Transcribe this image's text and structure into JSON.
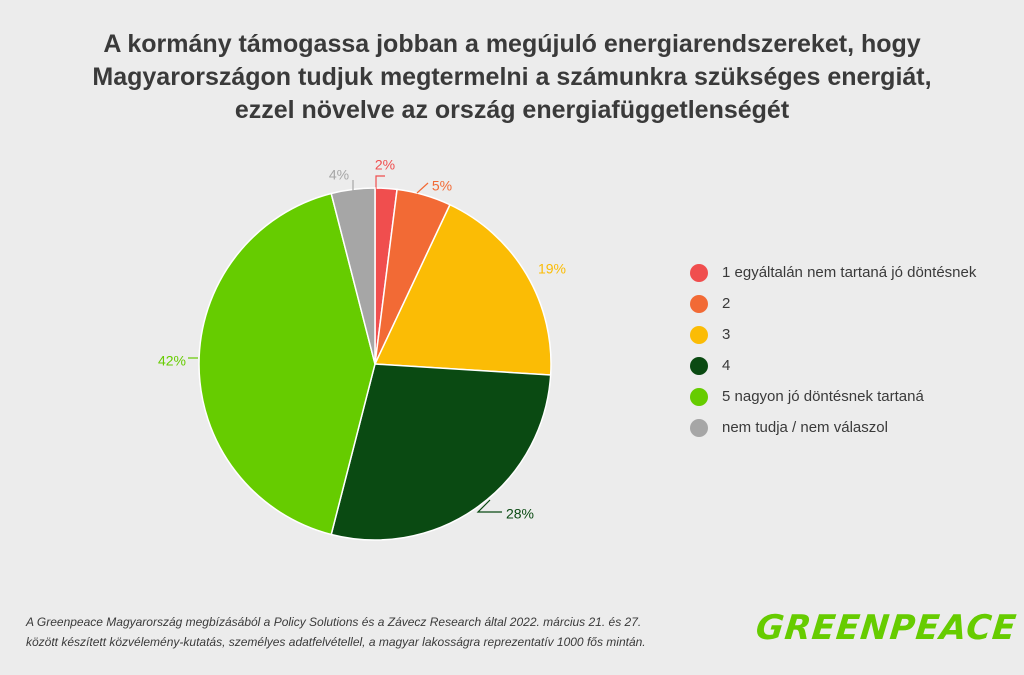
{
  "title": {
    "line1": "A kormány támogassa jobban a megújuló energiarendszereket, hogy",
    "line2": "Magyarországon tudjuk megtermelni a számunkra szükséges energiát,",
    "line3": "ezzel növelve az ország energiafüggetlenségét"
  },
  "chart_data": {
    "type": "pie",
    "title": "A kormány támogassa jobban a megújuló energiarendszereket, hogy Magyarországon tudjuk megtermelni a számunkra szükséges energiát, ezzel növelve az ország energiafüggetlenségét",
    "slices": [
      {
        "label": "1 egyáltalán nem tartaná jó döntésnek",
        "value": 2,
        "display": "2%",
        "color": "#f04e4e"
      },
      {
        "label": "2",
        "value": 5,
        "display": "5%",
        "color": "#f26a35"
      },
      {
        "label": "3",
        "value": 19,
        "display": "19%",
        "color": "#fbbc05"
      },
      {
        "label": "4",
        "value": 28,
        "display": "28%",
        "color": "#0a4a12"
      },
      {
        "label": "5 nagyon jó döntésnek tartaná",
        "value": 42,
        "display": "42%",
        "color": "#66cc00"
      },
      {
        "label": "nem tudja / nem válaszol",
        "value": 4,
        "display": "4%",
        "color": "#a6a6a6"
      }
    ],
    "legend_position": "right"
  },
  "footnote": {
    "line1": "A Greenpeace Magyarország megbízásából a Policy Solutions és a Závecz Research által 2022. március 21. és 27.",
    "line2": "között készített közvélemény-kutatás, személyes adatfelvétellel, a magyar lakosságra reprezentatív 1000 fős mintán."
  },
  "logo": "GREENPEACE"
}
